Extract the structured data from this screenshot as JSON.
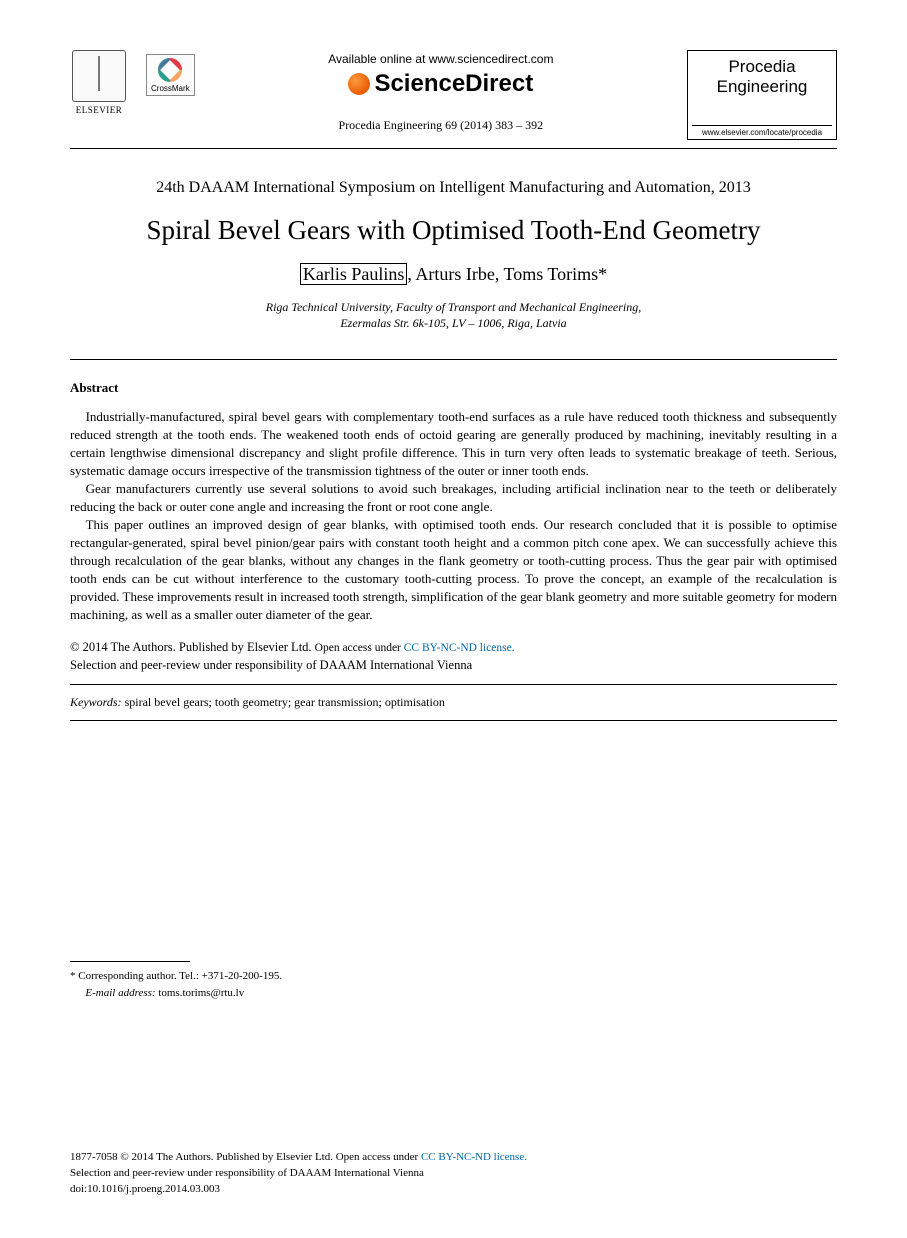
{
  "header": {
    "elsevier_label": "ELSEVIER",
    "crossmark_label": "CrossMark",
    "available_text": "Available online at www.sciencedirect.com",
    "sd_brand": "ScienceDirect",
    "citation": "Procedia Engineering 69 (2014) 383 – 392",
    "journal_name_line1": "Procedia",
    "journal_name_line2": "Engineering",
    "journal_url": "www.elsevier.com/locate/procedia"
  },
  "conference": "24th DAAAM International Symposium on Intelligent Manufacturing and Automation, 2013",
  "title": "Spiral Bevel Gears with Optimised Tooth-End Geometry",
  "authors": {
    "boxed": "Karlis Paulins",
    "rest": ", Arturs Irbe, Toms Torims*"
  },
  "affiliation": {
    "line1": "Riga Technical University, Faculty of Transport and Mechanical Engineering,",
    "line2": "Ezermalas Str. 6k-105, LV – 1006, Riga, Latvia"
  },
  "abstract": {
    "heading": "Abstract",
    "p1": "Industrially-manufactured, spiral bevel gears with complementary tooth-end surfaces as a rule have reduced tooth thickness and subsequently reduced strength at the tooth ends. The weakened tooth ends of octoid gearing are generally produced by machining, inevitably resulting in a certain lengthwise dimensional discrepancy and slight profile difference. This in turn very often leads to systematic breakage of teeth. Serious, systematic damage occurs irrespective of the transmission tightness of the outer or inner tooth ends.",
    "p2": "Gear manufacturers currently use several solutions to avoid such breakages, including artificial inclination near to the teeth or deliberately reducing the back or outer cone angle and increasing the front or root cone angle.",
    "p3": "This paper outlines an improved design of gear blanks, with optimised tooth ends. Our research concluded that it is possible to optimise rectangular-generated, spiral bevel pinion/gear pairs with constant tooth height and a common pitch cone apex. We can successfully achieve this through recalculation of the gear blanks, without any changes in the flank geometry or tooth-cutting process. Thus the gear pair with optimised tooth ends can be cut without interference to the customary tooth-cutting process. To prove the concept, an example of the recalculation is provided. These improvements result in increased tooth strength, simplification of the gear blank geometry and more suitable geometry for modern machining, as well as a smaller outer diameter of the gear."
  },
  "copyright": {
    "line1_a": "© 2014 The Authors. Published by Elsevier Ltd. ",
    "line1_b": "Open access under ",
    "license_text": "CC BY-NC-ND license.",
    "line2": "Selection and peer-review under responsibility of DAAAM International Vienna"
  },
  "keywords": {
    "label": "Keywords:",
    "text": " spiral bevel gears; tooth geometry; gear transmission; optimisation"
  },
  "footnote": {
    "corr": "* Corresponding author. Tel.: +371-20-200-195.",
    "email_label": "E-mail address:",
    "email": " toms.torims@rtu.lv"
  },
  "footer": {
    "issn_line_a": "1877-7058 © 2014 The Authors. Published by Elsevier Ltd. ",
    "issn_line_b": "Open access under ",
    "license_text": "CC BY-NC-ND license.",
    "review_line": "Selection and peer-review under responsibility of DAAAM International Vienna",
    "doi": "doi:10.1016/j.proeng.2014.03.003"
  },
  "colors": {
    "text": "#000000",
    "link": "#0066aa",
    "background": "#ffffff"
  }
}
